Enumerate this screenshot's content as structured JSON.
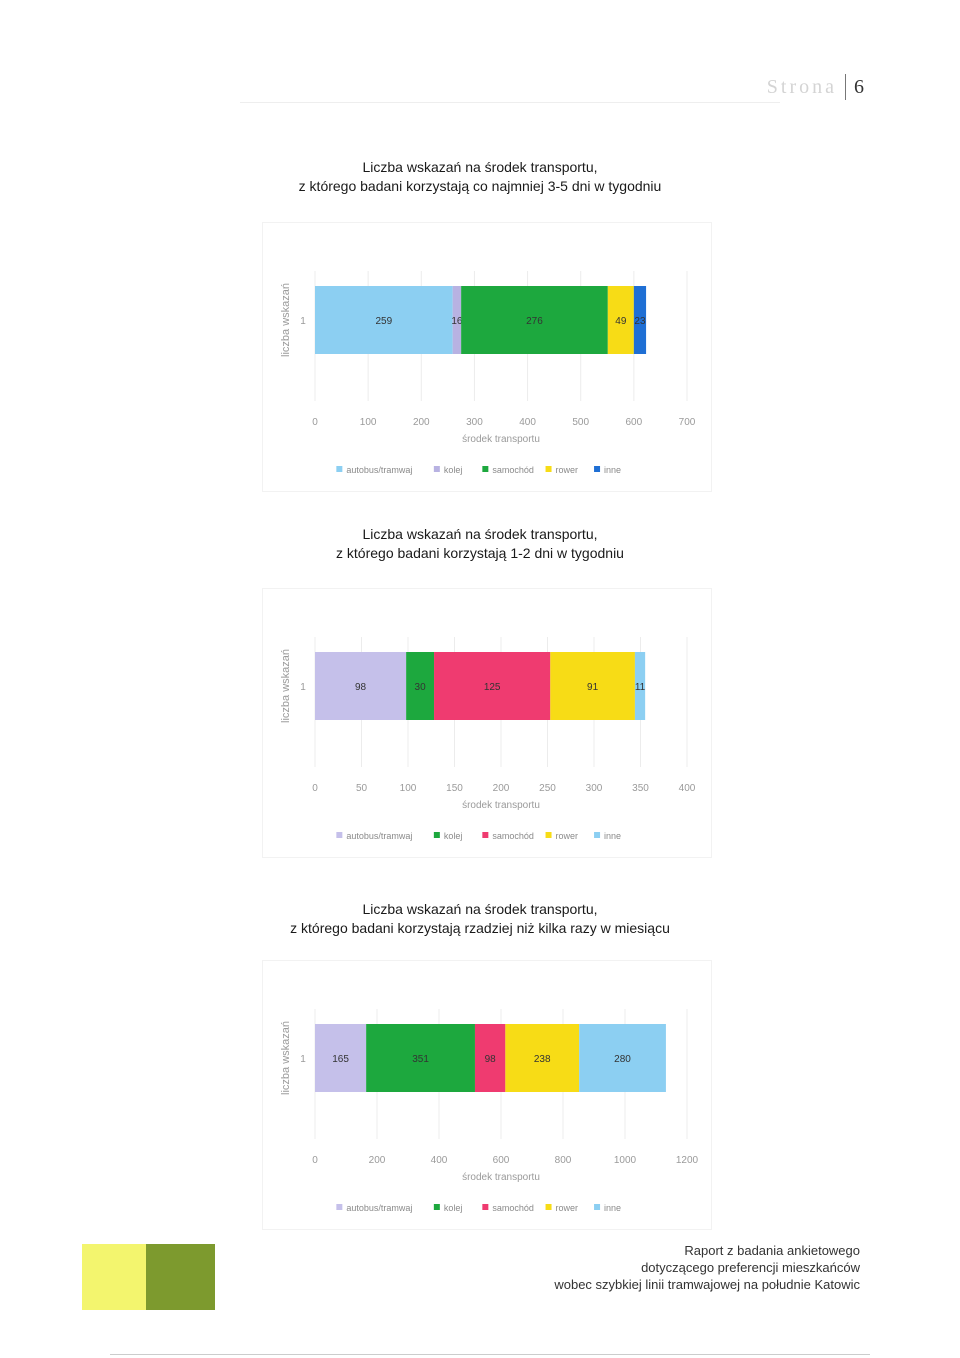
{
  "header": {
    "word": "Strona",
    "page_number": "6"
  },
  "charts": [
    {
      "title_line1": "Liczba wskazań na środek transportu,",
      "title_line2": "z którego badani korzystają co najmniej 3-5 dni w tygodniu"
    },
    {
      "title_line1": "Liczba wskazań na środek transportu,",
      "title_line2": "z którego badani korzystają 1-2 dni w tygodniu"
    },
    {
      "title_line1": "Liczba wskazań na środek transportu,",
      "title_line2": "z którego badani korzystają rzadziej niż kilka razy w miesiącu"
    }
  ],
  "chart_data": [
    {
      "type": "bar",
      "orientation": "horizontal",
      "stacked": true,
      "categories": [
        "1"
      ],
      "xlabel": "środek transportu",
      "ylabel": "liczba wskazań",
      "xlim": [
        0,
        700
      ],
      "ticks": [
        0,
        100,
        200,
        300,
        400,
        500,
        600,
        700
      ],
      "grid": true,
      "legend": "bottom",
      "series": [
        {
          "name": "autobus/tramwaj",
          "values": [
            259
          ],
          "color": "#8ccff2"
        },
        {
          "name": "kolej",
          "values": [
            16
          ],
          "color": "#b8b2e2"
        },
        {
          "name": "samochód",
          "values": [
            276
          ],
          "color": "#1da83e"
        },
        {
          "name": "rower",
          "values": [
            49
          ],
          "color": "#f7dc16"
        },
        {
          "name": "inne",
          "values": [
            23
          ],
          "color": "#1f6fd4"
        }
      ]
    },
    {
      "type": "bar",
      "orientation": "horizontal",
      "stacked": true,
      "categories": [
        "1"
      ],
      "xlabel": "środek transportu",
      "ylabel": "liczba wskazań",
      "xlim": [
        0,
        400
      ],
      "ticks": [
        0,
        50,
        100,
        150,
        200,
        250,
        300,
        350,
        400
      ],
      "grid": true,
      "legend": "bottom",
      "series": [
        {
          "name": "autobus/tramwaj",
          "values": [
            98
          ],
          "color": "#c5c0ea"
        },
        {
          "name": "kolej",
          "values": [
            30
          ],
          "color": "#1da83e"
        },
        {
          "name": "samochód",
          "values": [
            125
          ],
          "color": "#ef3b70"
        },
        {
          "name": "rower",
          "values": [
            91
          ],
          "color": "#f7dc16"
        },
        {
          "name": "inne",
          "values": [
            11
          ],
          "color": "#8ccff2"
        }
      ]
    },
    {
      "type": "bar",
      "orientation": "horizontal",
      "stacked": true,
      "categories": [
        "1"
      ],
      "xlabel": "środek transportu",
      "ylabel": "liczba wskazań",
      "xlim": [
        0,
        1200
      ],
      "ticks": [
        0,
        200,
        400,
        600,
        800,
        1000,
        1200
      ],
      "grid": true,
      "legend": "bottom",
      "series": [
        {
          "name": "autobus/tramwaj",
          "values": [
            165
          ],
          "color": "#c5c0ea"
        },
        {
          "name": "kolej",
          "values": [
            351
          ],
          "color": "#1da83e"
        },
        {
          "name": "samochód",
          "values": [
            98
          ],
          "color": "#ef3b70"
        },
        {
          "name": "rower",
          "values": [
            238
          ],
          "color": "#f7dc16"
        },
        {
          "name": "inne",
          "values": [
            280
          ],
          "color": "#8ccff2"
        }
      ]
    }
  ],
  "footer": {
    "line1": "Raport z badania ankietowego",
    "line2": "dotyczącego preferencji mieszkańców",
    "line3": "wobec szybkiej linii tramwajowej na południe Katowic"
  }
}
